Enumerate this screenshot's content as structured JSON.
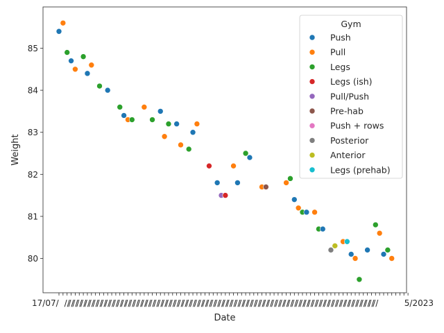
{
  "chart_data": {
    "type": "scatter",
    "xlabel": "Date",
    "ylabel": "Weight",
    "ylim": [
      79.0,
      86.0
    ],
    "yticks": [
      80,
      81,
      82,
      83,
      84,
      85
    ],
    "grid": false,
    "legend_title": "Gym",
    "legend_placement": "top-right",
    "categories": [
      "Push",
      "Pull",
      "Legs",
      "Legs (ish)",
      "Pull/Push",
      "Pre-hab",
      "Push + rows",
      "Posterior",
      "Anterior",
      "Legs (prehab)"
    ],
    "colors": {
      "Push": "#1f77b4",
      "Pull": "#ff7f0e",
      "Legs": "#2ca02c",
      "Legs (ish)": "#d62728",
      "Pull/Push": "#9467bd",
      "Pre-hab": "#8c564b",
      "Push + rows": "#e377c2",
      "Posterior": "#7f7f7f",
      "Anterior": "#bcbd22",
      "Legs (prehab)": "#17becf"
    },
    "x_tick_label_visible_fragment_start": "17/07/",
    "x_tick_label_visible_fragment_end": "5/2023",
    "points": [
      {
        "i": 0,
        "y": 85.4,
        "gym": "Push"
      },
      {
        "i": 1,
        "y": 85.6,
        "gym": "Pull"
      },
      {
        "i": 2,
        "y": 84.9,
        "gym": "Legs"
      },
      {
        "i": 3,
        "y": 84.7,
        "gym": "Push"
      },
      {
        "i": 4,
        "y": 84.5,
        "gym": "Pull"
      },
      {
        "i": 6,
        "y": 84.8,
        "gym": "Legs"
      },
      {
        "i": 7,
        "y": 84.4,
        "gym": "Push"
      },
      {
        "i": 8,
        "y": 84.6,
        "gym": "Pull"
      },
      {
        "i": 10,
        "y": 84.1,
        "gym": "Legs"
      },
      {
        "i": 12,
        "y": 84.0,
        "gym": "Push"
      },
      {
        "i": 15,
        "y": 83.6,
        "gym": "Legs"
      },
      {
        "i": 16,
        "y": 83.4,
        "gym": "Push"
      },
      {
        "i": 17,
        "y": 83.3,
        "gym": "Pull"
      },
      {
        "i": 18,
        "y": 83.3,
        "gym": "Legs"
      },
      {
        "i": 21,
        "y": 83.6,
        "gym": "Pull"
      },
      {
        "i": 23,
        "y": 83.3,
        "gym": "Legs"
      },
      {
        "i": 25,
        "y": 83.5,
        "gym": "Push"
      },
      {
        "i": 26,
        "y": 82.9,
        "gym": "Pull"
      },
      {
        "i": 27,
        "y": 83.2,
        "gym": "Legs"
      },
      {
        "i": 29,
        "y": 83.2,
        "gym": "Push"
      },
      {
        "i": 30,
        "y": 82.7,
        "gym": "Pull"
      },
      {
        "i": 32,
        "y": 82.6,
        "gym": "Legs"
      },
      {
        "i": 33,
        "y": 83.0,
        "gym": "Push"
      },
      {
        "i": 34,
        "y": 83.2,
        "gym": "Pull"
      },
      {
        "i": 37,
        "y": 82.2,
        "gym": "Legs (ish)"
      },
      {
        "i": 39,
        "y": 81.8,
        "gym": "Push"
      },
      {
        "i": 40,
        "y": 81.5,
        "gym": "Pull/Push"
      },
      {
        "i": 41,
        "y": 81.5,
        "gym": "Legs (ish)"
      },
      {
        "i": 43,
        "y": 82.2,
        "gym": "Pull"
      },
      {
        "i": 44,
        "y": 81.8,
        "gym": "Push"
      },
      {
        "i": 46,
        "y": 82.5,
        "gym": "Legs"
      },
      {
        "i": 47,
        "y": 82.4,
        "gym": "Push"
      },
      {
        "i": 50,
        "y": 81.7,
        "gym": "Pull"
      },
      {
        "i": 51,
        "y": 81.7,
        "gym": "Pre-hab"
      },
      {
        "i": 56,
        "y": 81.8,
        "gym": "Pull"
      },
      {
        "i": 57,
        "y": 81.9,
        "gym": "Legs"
      },
      {
        "i": 58,
        "y": 81.4,
        "gym": "Push"
      },
      {
        "i": 59,
        "y": 81.2,
        "gym": "Pull"
      },
      {
        "i": 60,
        "y": 81.1,
        "gym": "Legs"
      },
      {
        "i": 61,
        "y": 81.1,
        "gym": "Push"
      },
      {
        "i": 63,
        "y": 81.1,
        "gym": "Pull"
      },
      {
        "i": 64,
        "y": 80.7,
        "gym": "Legs"
      },
      {
        "i": 65,
        "y": 80.7,
        "gym": "Push"
      },
      {
        "i": 67,
        "y": 80.2,
        "gym": "Posterior"
      },
      {
        "i": 68,
        "y": 80.3,
        "gym": "Anterior"
      },
      {
        "i": 70,
        "y": 80.4,
        "gym": "Pull"
      },
      {
        "i": 71,
        "y": 80.4,
        "gym": "Legs (prehab)"
      },
      {
        "i": 72,
        "y": 80.1,
        "gym": "Push"
      },
      {
        "i": 73,
        "y": 80.0,
        "gym": "Pull"
      },
      {
        "i": 74,
        "y": 79.5,
        "gym": "Legs"
      },
      {
        "i": 76,
        "y": 80.2,
        "gym": "Push"
      },
      {
        "i": 78,
        "y": 80.8,
        "gym": "Legs"
      },
      {
        "i": 79,
        "y": 80.6,
        "gym": "Pull"
      },
      {
        "i": 80,
        "y": 80.1,
        "gym": "Push"
      },
      {
        "i": 81,
        "y": 80.2,
        "gym": "Legs"
      },
      {
        "i": 82,
        "y": 80.0,
        "gym": "Pull"
      }
    ]
  }
}
